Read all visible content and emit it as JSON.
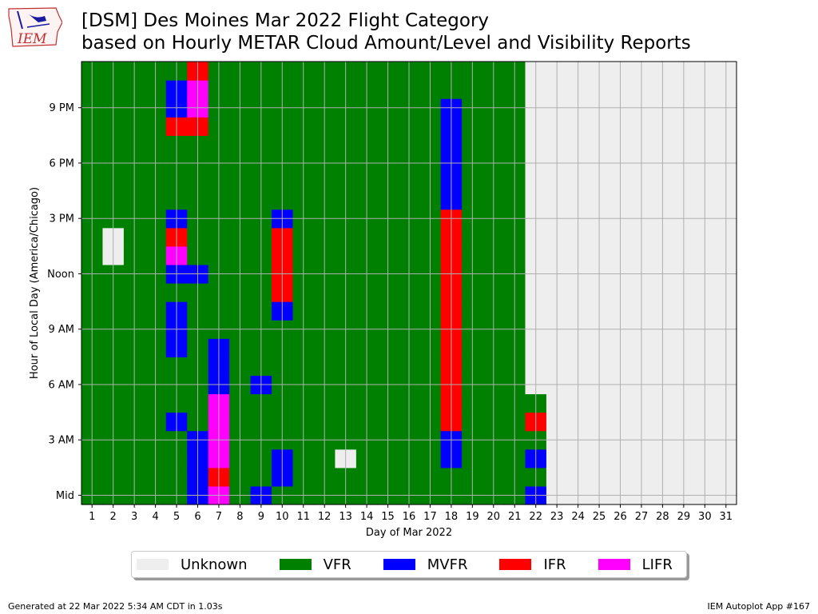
{
  "title": {
    "line1": "[DSM] Des Moines Mar 2022 Flight Category",
    "line2": "based on Hourly METAR Cloud Amount/Level and Visibility Reports"
  },
  "logo": {
    "text": "IEM",
    "icon": "iowa-state-outline-logo"
  },
  "footer": {
    "left": "Generated at 22 Mar 2022 5:34 AM CDT in 1.03s",
    "right": "IEM Autoplot App #167"
  },
  "colors": {
    "Unknown": "#eeeeee",
    "VFR": "#008000",
    "MVFR": "#0000ff",
    "IFR": "#ff0000",
    "LIFR": "#ff00ff",
    "grid": "#b0b0b0"
  },
  "legend": [
    {
      "label": "Unknown",
      "code": "U"
    },
    {
      "label": "VFR",
      "code": "V"
    },
    {
      "label": "MVFR",
      "code": "M"
    },
    {
      "label": "IFR",
      "code": "I"
    },
    {
      "label": "LIFR",
      "code": "L"
    }
  ],
  "chart_data": {
    "type": "heatmap",
    "xlabel": "Day of Mar 2022",
    "ylabel": "Hour of Local Day (America/Chicago)",
    "x": [
      1,
      2,
      3,
      4,
      5,
      6,
      7,
      8,
      9,
      10,
      11,
      12,
      13,
      14,
      15,
      16,
      17,
      18,
      19,
      20,
      21,
      22,
      23,
      24,
      25,
      26,
      27,
      28,
      29,
      30,
      31
    ],
    "y_ticks": [
      {
        "hour": 0,
        "label": "Mid"
      },
      {
        "hour": 3,
        "label": "3 AM"
      },
      {
        "hour": 6,
        "label": "6 AM"
      },
      {
        "hour": 9,
        "label": "9 AM"
      },
      {
        "hour": 12,
        "label": "Noon"
      },
      {
        "hour": 15,
        "label": "3 PM"
      },
      {
        "hour": 18,
        "label": "6 PM"
      },
      {
        "hour": 21,
        "label": "9 PM"
      }
    ],
    "ylim": [
      0,
      23
    ],
    "default_category": "VFR",
    "unknown_from": {
      "day": 22,
      "hour": 6
    },
    "cells": [
      {
        "day": 2,
        "hours": [
          13,
          14
        ],
        "category": "Unknown"
      },
      {
        "day": 5,
        "hours": [
          4
        ],
        "category": "MVFR"
      },
      {
        "day": 5,
        "hours": [
          8,
          9,
          10
        ],
        "category": "MVFR"
      },
      {
        "day": 5,
        "hours": [
          12
        ],
        "category": "MVFR"
      },
      {
        "day": 5,
        "hours": [
          13
        ],
        "category": "LIFR"
      },
      {
        "day": 5,
        "hours": [
          14
        ],
        "category": "IFR"
      },
      {
        "day": 5,
        "hours": [
          15
        ],
        "category": "MVFR"
      },
      {
        "day": 5,
        "hours": [
          20
        ],
        "category": "IFR"
      },
      {
        "day": 5,
        "hours": [
          21,
          22
        ],
        "category": "MVFR"
      },
      {
        "day": 6,
        "hours": [
          0,
          1,
          2,
          3
        ],
        "category": "MVFR"
      },
      {
        "day": 6,
        "hours": [
          12
        ],
        "category": "MVFR"
      },
      {
        "day": 6,
        "hours": [
          20
        ],
        "category": "IFR"
      },
      {
        "day": 6,
        "hours": [
          21,
          22
        ],
        "category": "LIFR"
      },
      {
        "day": 6,
        "hours": [
          23
        ],
        "category": "IFR"
      },
      {
        "day": 7,
        "hours": [
          0
        ],
        "category": "LIFR"
      },
      {
        "day": 7,
        "hours": [
          1
        ],
        "category": "IFR"
      },
      {
        "day": 7,
        "hours": [
          2,
          3,
          4,
          5
        ],
        "category": "LIFR"
      },
      {
        "day": 7,
        "hours": [
          6,
          7,
          8
        ],
        "category": "MVFR"
      },
      {
        "day": 9,
        "hours": [
          0
        ],
        "category": "MVFR"
      },
      {
        "day": 9,
        "hours": [
          6
        ],
        "category": "MVFR"
      },
      {
        "day": 10,
        "hours": [
          1,
          2
        ],
        "category": "MVFR"
      },
      {
        "day": 10,
        "hours": [
          10
        ],
        "category": "MVFR"
      },
      {
        "day": 10,
        "hours": [
          11,
          12,
          13,
          14
        ],
        "category": "IFR"
      },
      {
        "day": 10,
        "hours": [
          15
        ],
        "category": "MVFR"
      },
      {
        "day": 13,
        "hours": [
          2
        ],
        "category": "Unknown"
      },
      {
        "day": 18,
        "hours": [
          2,
          3
        ],
        "category": "MVFR"
      },
      {
        "day": 18,
        "hours": [
          4,
          5,
          6,
          7,
          8,
          9,
          10,
          11,
          12,
          13,
          14,
          15
        ],
        "category": "IFR"
      },
      {
        "day": 18,
        "hours": [
          16,
          17,
          18,
          19,
          20,
          21
        ],
        "category": "MVFR"
      },
      {
        "day": 22,
        "hours": [
          0
        ],
        "category": "MVFR"
      },
      {
        "day": 22,
        "hours": [
          2
        ],
        "category": "MVFR"
      },
      {
        "day": 22,
        "hours": [
          4
        ],
        "category": "IFR"
      }
    ]
  }
}
